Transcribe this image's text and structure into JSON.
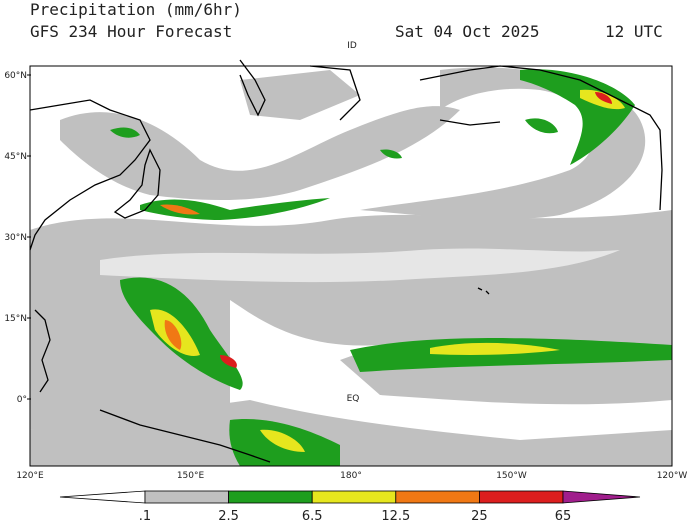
{
  "header": {
    "title": "Precipitation (mm/6hr)",
    "subtitle": "GFS 234 Hour Forecast",
    "date": "Sat 04 Oct 2025",
    "time": "12 UTC"
  },
  "map": {
    "lat_labels": [
      "60°N",
      "45°N",
      "30°N",
      "15°N",
      "0°"
    ],
    "lon_labels": [
      "120°E",
      "150°E",
      "180°",
      "150°W",
      "120°W"
    ],
    "annotations": [
      "ID",
      "EQ"
    ]
  },
  "colorbar": {
    "levels": [
      {
        "value": 0.1,
        "label": ".1"
      },
      2.5,
      6.5,
      12.5,
      25,
      65
    ],
    "colors": [
      "#ffffff",
      "#c0c0c0",
      "#1e9e1e",
      "#e6e61e",
      "#f07814",
      "#dc1e1e",
      "#a01e8c"
    ]
  }
}
